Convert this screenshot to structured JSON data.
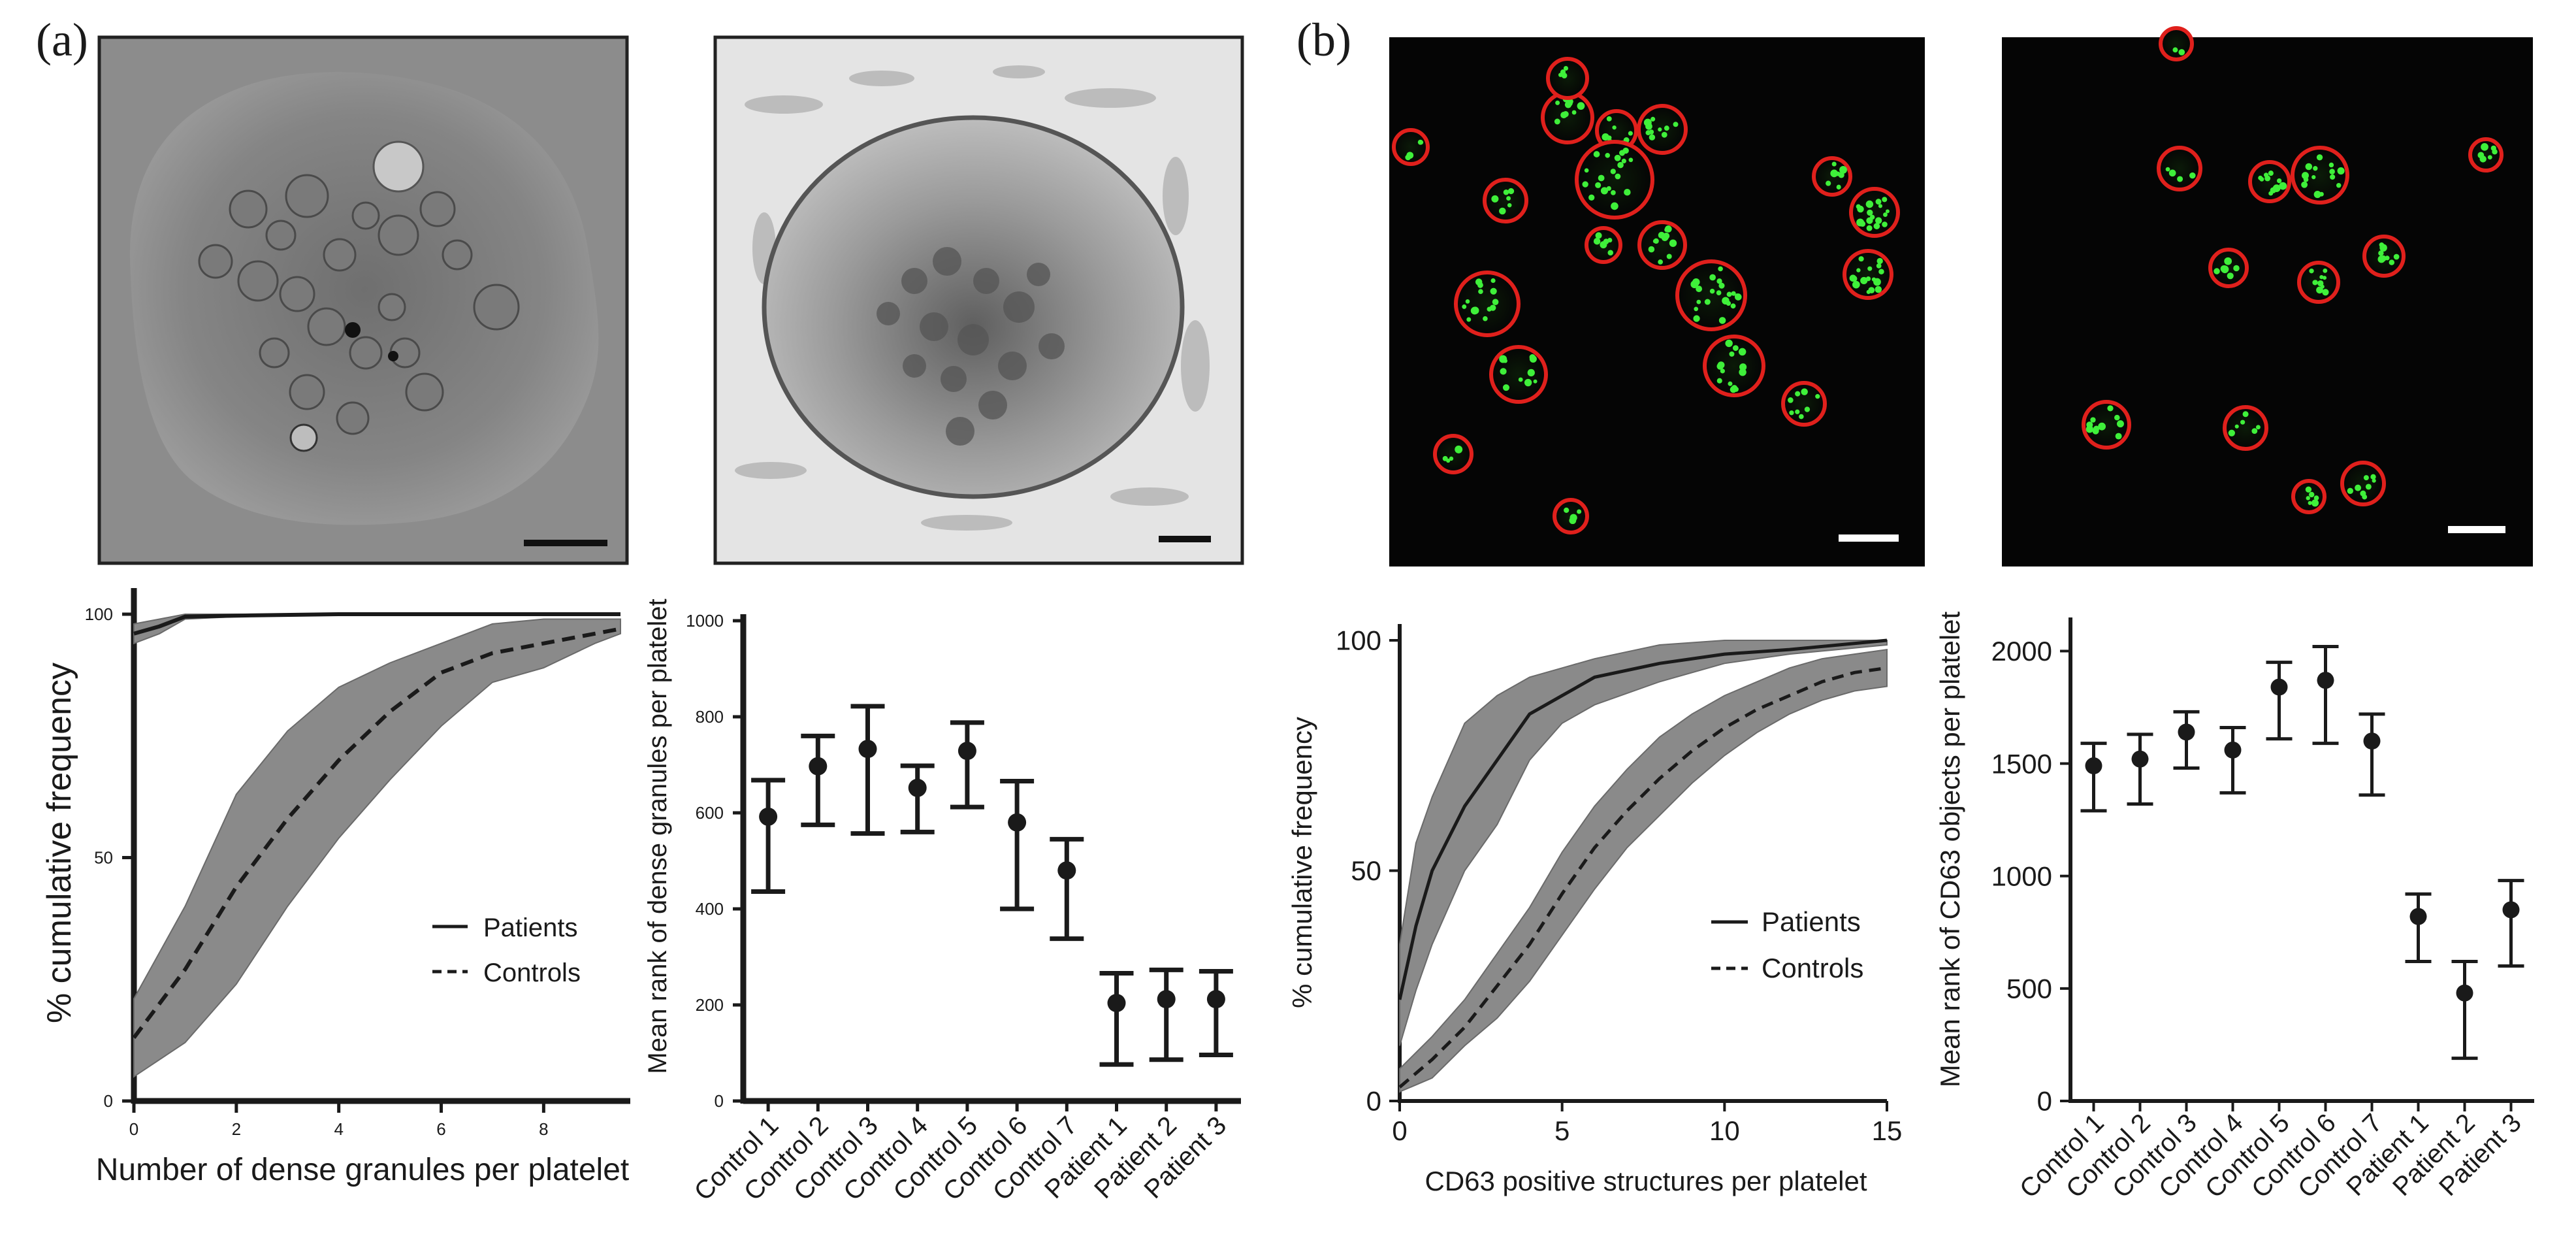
{
  "panels": {
    "a": {
      "letter": "(a)"
    },
    "b": {
      "letter": "(b)"
    }
  },
  "micrographs": [
    {
      "kind": "electron-micrograph",
      "subject": "control platelet",
      "scale_bar": true
    },
    {
      "kind": "electron-micrograph",
      "subject": "patient platelet",
      "scale_bar": true
    },
    {
      "kind": "confocal-fluorescence",
      "subject": "control platelets CD63 (green) membrane (red)",
      "scale_bar": true
    },
    {
      "kind": "confocal-fluorescence",
      "subject": "patient platelets CD63 (green) membrane (red)",
      "scale_bar": true
    }
  ],
  "chart_data": [
    {
      "type": "line",
      "panel": "a",
      "xlabel": "Number of dense granules per platelet",
      "ylabel": "% cumulative frequency",
      "xlim": [
        0,
        9.5
      ],
      "ylim": [
        0,
        100
      ],
      "xticks": [
        0,
        2,
        4,
        6,
        8
      ],
      "yticks": [
        0,
        50,
        100
      ],
      "legend": {
        "position": "center-right",
        "entries": [
          "Patients",
          "Controls"
        ]
      },
      "series": [
        {
          "name": "Patients",
          "style": "solid",
          "x": [
            0,
            0.5,
            1,
            2,
            4,
            6,
            8,
            9.5
          ],
          "y": [
            96,
            97.5,
            99.5,
            99.7,
            100,
            100,
            100,
            100
          ],
          "lower": [
            94,
            96,
            99,
            99.5,
            100,
            100,
            100,
            100
          ],
          "upper": [
            98,
            99,
            100,
            100,
            100,
            100,
            100,
            100
          ]
        },
        {
          "name": "Controls",
          "style": "dashed",
          "x": [
            0,
            1,
            2,
            3,
            4,
            5,
            6,
            7,
            8,
            9,
            9.5
          ],
          "y": [
            13,
            27,
            44,
            58,
            70,
            80,
            88,
            92,
            94,
            96,
            97
          ],
          "lower": [
            5,
            12,
            24,
            40,
            54,
            66,
            77,
            86,
            89,
            94,
            96
          ],
          "upper": [
            21,
            40,
            63,
            76,
            85,
            90,
            94,
            98,
            99,
            99,
            99
          ]
        }
      ]
    },
    {
      "type": "scatter",
      "panel": "a",
      "ylabel": "Mean rank of dense granules per platelet",
      "ylim": [
        0,
        1000
      ],
      "yticks": [
        0,
        200,
        400,
        600,
        800,
        1000
      ],
      "categories": [
        "Control 1",
        "Control 2",
        "Control 3",
        "Control 4",
        "Control 5",
        "Control 6",
        "Control 7",
        "Patient 1",
        "Patient 2",
        "Patient 3"
      ],
      "values": [
        592,
        697,
        733,
        652,
        729,
        580,
        480,
        204,
        212,
        212
      ],
      "err_low": [
        436,
        575,
        557,
        560,
        612,
        400,
        338,
        76,
        86,
        96
      ],
      "err_high": [
        668,
        760,
        822,
        698,
        788,
        666,
        545,
        266,
        273,
        270
      ]
    },
    {
      "type": "line",
      "panel": "b",
      "xlabel": "CD63 positive structures per platelet",
      "ylabel": "% cumulative frequency",
      "xlim": [
        0,
        15
      ],
      "ylim": [
        0,
        100
      ],
      "xticks": [
        0,
        5,
        10,
        15
      ],
      "yticks": [
        0,
        50,
        100
      ],
      "legend": {
        "position": "center-right",
        "entries": [
          "Patients",
          "Controls"
        ]
      },
      "series": [
        {
          "name": "Patients",
          "style": "solid",
          "x": [
            0,
            0.5,
            1,
            2,
            3,
            4,
            5,
            6,
            8,
            10,
            12,
            15
          ],
          "y": [
            22,
            38,
            50,
            64,
            74,
            84,
            88,
            92,
            95,
            97,
            98,
            100
          ],
          "lower": [
            12,
            24,
            34,
            50,
            60,
            74,
            82,
            86,
            91,
            95,
            97,
            99
          ],
          "upper": [
            34,
            56,
            66,
            82,
            88,
            92,
            94,
            96,
            99,
            100,
            100,
            100
          ]
        },
        {
          "name": "Controls",
          "style": "dashed",
          "x": [
            0,
            1,
            2,
            3,
            4,
            5,
            6,
            7,
            8,
            9,
            10,
            11,
            12,
            13,
            14,
            15
          ],
          "y": [
            3,
            9,
            16,
            25,
            34,
            45,
            55,
            63,
            70,
            76,
            81,
            85,
            88,
            91,
            93,
            94
          ],
          "lower": [
            2,
            5,
            12,
            18,
            26,
            36,
            46,
            55,
            62,
            69,
            75,
            80,
            84,
            87,
            89,
            90
          ],
          "upper": [
            7,
            14,
            22,
            32,
            42,
            54,
            64,
            72,
            79,
            84,
            88,
            91,
            94,
            96,
            97,
            98
          ]
        }
      ]
    },
    {
      "type": "scatter",
      "panel": "b",
      "ylabel": "Mean rank of CD63 objects per platelet",
      "ylim": [
        0,
        2100
      ],
      "yticks": [
        0,
        500,
        1000,
        1500,
        2000
      ],
      "categories": [
        "Control 1",
        "Control 2",
        "Control 3",
        "Control 4",
        "Control 5",
        "Control 6",
        "Control 7",
        "Patient 1",
        "Patient 2",
        "Patient 3"
      ],
      "values": [
        1490,
        1520,
        1640,
        1560,
        1840,
        1870,
        1600,
        820,
        480,
        850
      ],
      "err_low": [
        1290,
        1320,
        1480,
        1370,
        1610,
        1590,
        1360,
        620,
        190,
        600
      ],
      "err_high": [
        1590,
        1630,
        1730,
        1660,
        1950,
        2020,
        1720,
        920,
        620,
        980
      ]
    }
  ]
}
